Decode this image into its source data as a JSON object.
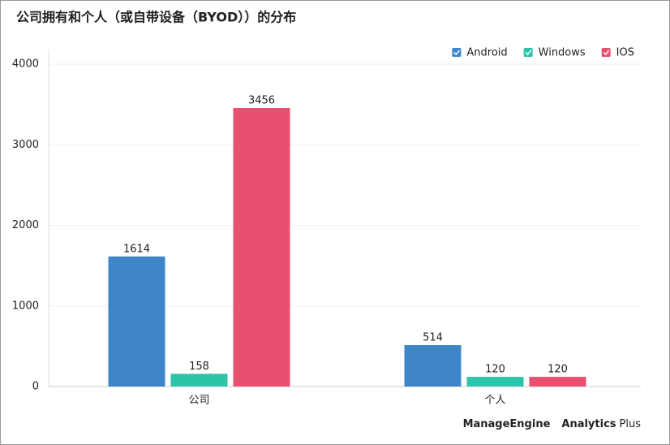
{
  "chart_data": {
    "type": "bar",
    "title": "公司拥有和个人（或自带设备（BYOD））的分布",
    "categories": [
      "公司",
      "个人"
    ],
    "series": [
      {
        "name": "Android",
        "color": "#3f86c8",
        "values": [
          1614,
          514
        ]
      },
      {
        "name": "Windows",
        "color": "#2ec4a9",
        "values": [
          158,
          120
        ]
      },
      {
        "name": "IOS",
        "color": "#e8506f",
        "values": [
          3456,
          120
        ]
      }
    ],
    "ylim": [
      0,
      4000
    ],
    "yticks": [
      0,
      1000,
      2000,
      3000,
      4000
    ],
    "grid": true,
    "legend": "top-right",
    "footer": {
      "brand": "ManageEngine",
      "product": "Analytics",
      "suffix": "Plus"
    }
  }
}
